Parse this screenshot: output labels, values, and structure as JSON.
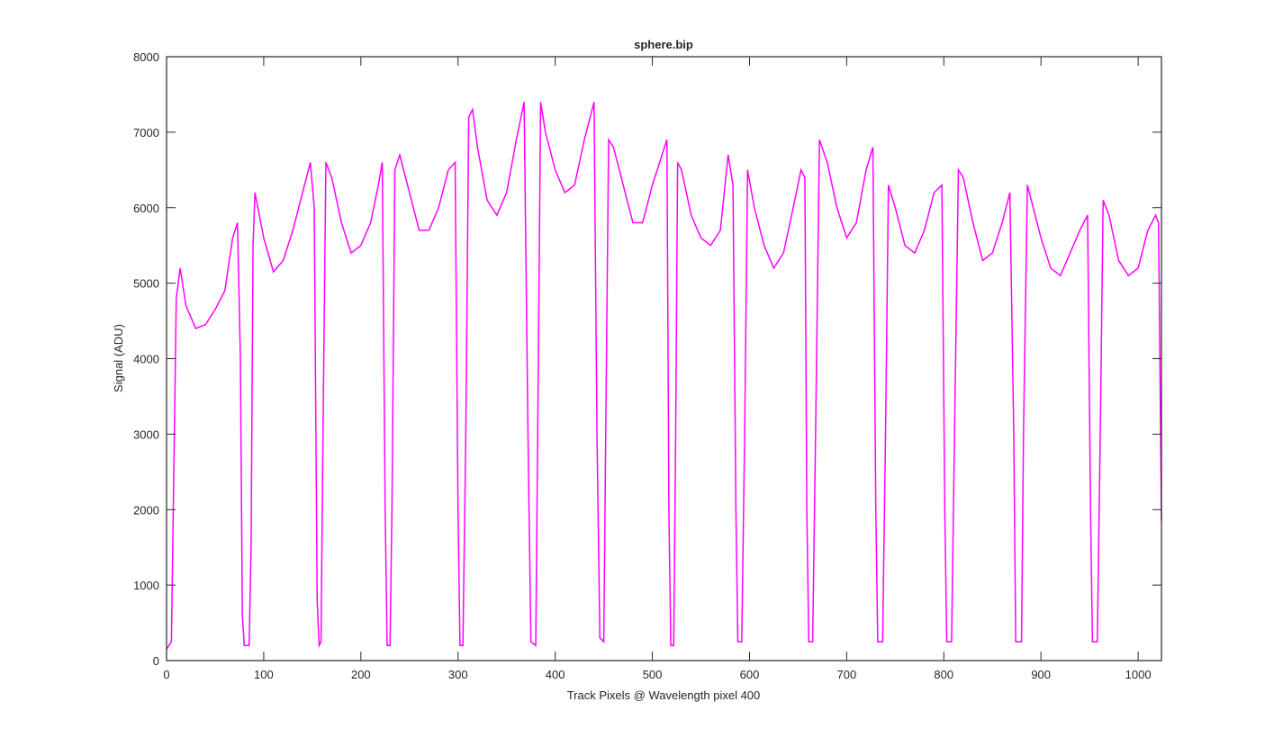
{
  "chart_data": {
    "type": "line",
    "title": "sphere.bip",
    "xlabel": "Track Pixels @ Wavelength pixel 400",
    "ylabel": "Signal (ADU)",
    "x": [
      0,
      5,
      8,
      10,
      14,
      20,
      30,
      40,
      50,
      60,
      68,
      73,
      76,
      78,
      80,
      85,
      87,
      89,
      91,
      100,
      110,
      120,
      130,
      140,
      148,
      152,
      155,
      157,
      159,
      161,
      164,
      170,
      180,
      190,
      200,
      210,
      218,
      222,
      225,
      227,
      230,
      232,
      235,
      240,
      250,
      260,
      270,
      280,
      290,
      297,
      300,
      302,
      305,
      308,
      311,
      315,
      320,
      330,
      340,
      350,
      360,
      368,
      372,
      375,
      380,
      382,
      385,
      390,
      400,
      410,
      420,
      430,
      440,
      443,
      446,
      450,
      452,
      455,
      460,
      470,
      480,
      490,
      500,
      510,
      515,
      517,
      519,
      522,
      524,
      526,
      530,
      540,
      550,
      560,
      570,
      578,
      583,
      586,
      588,
      592,
      595,
      598,
      605,
      615,
      625,
      635,
      645,
      653,
      657,
      659,
      661,
      665,
      668,
      672,
      680,
      690,
      700,
      710,
      720,
      727,
      730,
      732,
      737,
      740,
      743,
      750,
      760,
      770,
      780,
      790,
      798,
      801,
      803,
      808,
      811,
      815,
      820,
      830,
      840,
      850,
      860,
      868,
      872,
      874,
      880,
      882,
      886,
      890,
      900,
      910,
      920,
      930,
      940,
      948,
      951,
      953,
      958,
      961,
      964,
      970,
      980,
      990,
      1000,
      1010,
      1018,
      1021,
      1024
    ],
    "series": [
      {
        "color": "#ff00ff",
        "values": [
          150,
          250,
          3000,
          4800,
          5200,
          4700,
          4400,
          4450,
          4650,
          4900,
          5600,
          5800,
          4000,
          600,
          200,
          200,
          1500,
          5500,
          6200,
          5600,
          5150,
          5300,
          5700,
          6200,
          6600,
          6000,
          800,
          200,
          250,
          3000,
          6600,
          6400,
          5800,
          5400,
          5500,
          5800,
          6300,
          6600,
          2000,
          200,
          200,
          2000,
          6500,
          6700,
          6200,
          5700,
          5700,
          6000,
          6500,
          6600,
          2000,
          200,
          200,
          3000,
          7200,
          7300,
          6800,
          6100,
          5900,
          6200,
          6900,
          7400,
          3000,
          250,
          200,
          3000,
          7400,
          7000,
          6500,
          6200,
          6300,
          6900,
          7400,
          3000,
          300,
          250,
          3000,
          6900,
          6800,
          6300,
          5800,
          5800,
          6300,
          6700,
          6900,
          2000,
          200,
          200,
          3000,
          6600,
          6500,
          5900,
          5600,
          5500,
          5700,
          6700,
          6300,
          2000,
          250,
          250,
          3000,
          6500,
          6000,
          5500,
          5200,
          5400,
          6000,
          6500,
          6400,
          2000,
          250,
          250,
          3000,
          6900,
          6600,
          6000,
          5600,
          5800,
          6500,
          6800,
          2000,
          250,
          250,
          3000,
          6300,
          6000,
          5500,
          5400,
          5700,
          6200,
          6300,
          2000,
          250,
          250,
          3000,
          6500,
          6400,
          5800,
          5300,
          5400,
          5800,
          6200,
          3000,
          250,
          250,
          3000,
          6300,
          6100,
          5600,
          5200,
          5100,
          5400,
          5700,
          5900,
          2000,
          250,
          250,
          3000,
          6100,
          5900,
          5300,
          5100,
          5200,
          5700,
          5900,
          5800,
          1850
        ]
      }
    ],
    "xlim": [
      0,
      1024
    ],
    "ylim": [
      0,
      8000
    ],
    "xticks": [
      0,
      100,
      200,
      300,
      400,
      500,
      600,
      700,
      800,
      900,
      1000
    ],
    "yticks": [
      0,
      1000,
      2000,
      3000,
      4000,
      5000,
      6000,
      7000,
      8000
    ]
  }
}
